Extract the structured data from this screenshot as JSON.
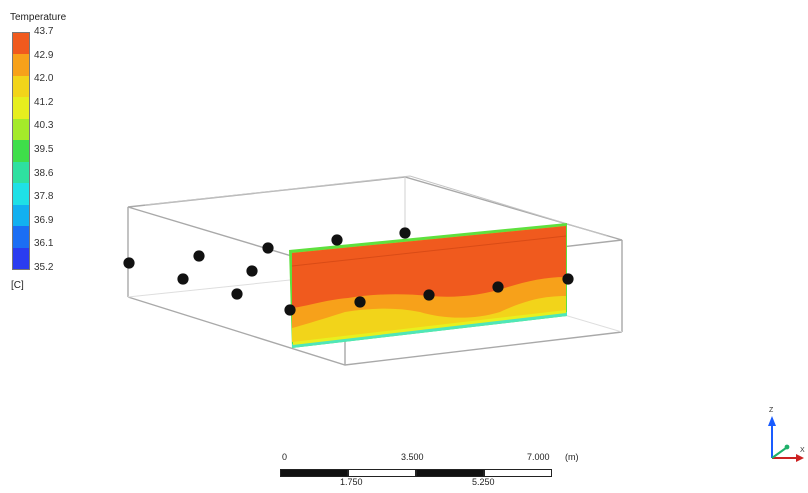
{
  "legend": {
    "title": "Temperature",
    "unit": "[C]",
    "values": [
      "43.7",
      "42.9",
      "42.0",
      "41.2",
      "40.3",
      "39.5",
      "38.6",
      "37.8",
      "36.9",
      "36.1",
      "35.2"
    ],
    "colors": [
      "#f05a1e",
      "#f7a11a",
      "#f2d41a",
      "#e6ee1e",
      "#a4ea2a",
      "#3fde4a",
      "#2ee0a0",
      "#1fe0e6",
      "#12b0f0",
      "#1b6ef4",
      "#2a3cf0"
    ]
  },
  "scale": {
    "labels_top": [
      "0",
      "3.500",
      "7.000"
    ],
    "unit": "(m)",
    "labels_bottom": [
      "1.750",
      "5.250"
    ]
  },
  "triad": {
    "x_label": "X",
    "z_label": "Z"
  }
}
